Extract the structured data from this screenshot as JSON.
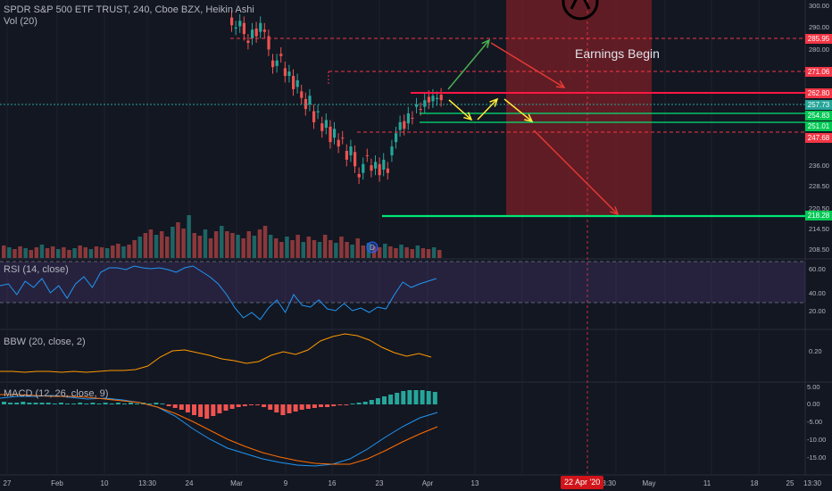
{
  "header": {
    "title": "SPDR S&P 500 ETF TRUST, 240, Cboe BZX, Heikin Ashi",
    "volume_label": "Vol (20)"
  },
  "indicators": {
    "rsi_label": "RSI (14, close)",
    "bbw_label": "BBW (20, close, 2)",
    "macd_label": "MACD (12, 26, close, 9)"
  },
  "annotation": {
    "earnings": "Earnings Begin",
    "dividend_marker": "D"
  },
  "x_axis": {
    "labels": [
      "27",
      "Feb",
      "10",
      "13:30",
      "24",
      "Mar",
      "9",
      "16",
      "23",
      "Apr",
      "13",
      "22 Apr '20",
      "13:30",
      "May",
      "11",
      "18",
      "25",
      "13:30"
    ],
    "highlight_label": "22 Apr '20"
  },
  "price_axis": {
    "ticks": [
      "300.00",
      "290.00",
      "280.00",
      "271.06",
      "262.80",
      "257.73",
      "254.83",
      "251.01",
      "247.68",
      "236.00",
      "228.50",
      "220.50",
      "218.28",
      "214.50",
      "208.50"
    ],
    "level_tags": [
      {
        "value": "285.95",
        "color": "#f23645"
      },
      {
        "value": "271.06",
        "color": "#f23645"
      },
      {
        "value": "262.80",
        "color": "#f23645"
      },
      {
        "value": "257.73",
        "color": "#26a69a"
      },
      {
        "value": "254.83",
        "color": "#00c853"
      },
      {
        "value": "251.01",
        "color": "#00c853"
      },
      {
        "value": "247.68",
        "color": "#f23645"
      },
      {
        "value": "218.28",
        "color": "#00c853"
      }
    ]
  },
  "rsi_axis": {
    "ticks": [
      "60.00",
      "40.00",
      "20.00"
    ]
  },
  "bbw_axis": {
    "ticks": [
      "0.20"
    ]
  },
  "macd_axis": {
    "ticks": [
      "5.00",
      "0.00",
      "-5.00",
      "-10.00",
      "-15.00"
    ]
  },
  "colors": {
    "background": "#131722",
    "up": "#26a69a",
    "down": "#ef5350",
    "resistance_line": "#ff1744",
    "support_line": "#00e676",
    "arrow_up": "#4caf50",
    "arrow_yellow": "#ffeb3b",
    "arrow_red": "#e53935",
    "earnings_zone": "#7b1f25",
    "rsi_line": "#2196f3",
    "rsi_band": "#7e57c2",
    "bbw_line": "#ff9800",
    "macd_line": "#2196f3",
    "signal_line": "#ff6d00"
  }
}
